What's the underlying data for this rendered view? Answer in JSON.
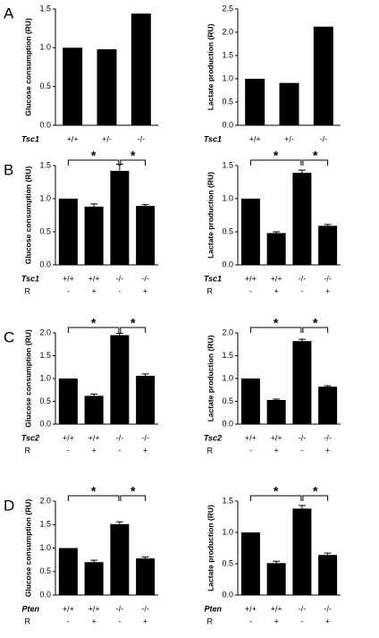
{
  "chart_data": [
    {
      "type": "bar",
      "panel": "A",
      "ylabel": "Glucose consumption (RU)",
      "gene": "Tsc1",
      "categories": [
        "+/+",
        "+/-",
        "-/-"
      ],
      "values": [
        1.0,
        0.98,
        1.44
      ],
      "color": "#000000",
      "ylim": [
        0,
        1.5
      ],
      "yticks": [
        {
          "value": 0,
          "label": "0.0"
        },
        {
          "value": 0.5,
          "label": "0.5"
        },
        {
          "value": 1,
          "label": "1.0"
        },
        {
          "value": 1.5,
          "label": "1.5"
        }
      ]
    },
    {
      "type": "bar",
      "ylabel": "Lactate production (RU)",
      "gene": "Tsc1",
      "categories": [
        "+/+",
        "+/-",
        "-/-"
      ],
      "values": [
        1.0,
        0.91,
        2.12
      ],
      "color": "#000000",
      "ylim": [
        0,
        2.5
      ],
      "yticks": [
        {
          "value": 0,
          "label": "0.0"
        },
        {
          "value": 0.5,
          "label": "0.5"
        },
        {
          "value": 1,
          "label": "1.0"
        },
        {
          "value": 1.5,
          "label": "1.5"
        },
        {
          "value": 2,
          "label": "2.0"
        },
        {
          "value": 2.5,
          "label": "2.5"
        }
      ]
    },
    {
      "type": "bar",
      "panel": "B",
      "ylabel": "Glucose consumption (RU)",
      "gene": "Tsc1",
      "categories": [
        "+/+",
        "+/+",
        "-/-",
        "-/-"
      ],
      "treatment_label": "R",
      "treatments": [
        "-",
        "+",
        "-",
        "+"
      ],
      "values": [
        1.0,
        0.88,
        1.42,
        0.89
      ],
      "errors": [
        0.0,
        0.04,
        0.1,
        0.02
      ],
      "significance": [
        "*",
        "*"
      ],
      "color": "#000000",
      "ylim": [
        0,
        1.5
      ],
      "yticks": [
        {
          "value": 0,
          "label": "0.0"
        },
        {
          "value": 0.5,
          "label": "0.5"
        },
        {
          "value": 1,
          "label": "1.0"
        },
        {
          "value": 1.5,
          "label": "1.5"
        }
      ]
    },
    {
      "type": "bar",
      "ylabel": "Lactate production (RU)",
      "gene": "Tsc1",
      "categories": [
        "+/+",
        "+/+",
        "-/-",
        "-/-"
      ],
      "treatment_label": "R",
      "treatments": [
        "-",
        "+",
        "-",
        "+"
      ],
      "values": [
        1.0,
        0.48,
        1.39,
        0.59
      ],
      "errors": [
        0.0,
        0.02,
        0.04,
        0.02
      ],
      "significance": [
        "*",
        "*"
      ],
      "color": "#000000",
      "ylim": [
        0,
        1.5
      ],
      "yticks": [
        {
          "value": 0,
          "label": "0.0"
        },
        {
          "value": 0.5,
          "label": "0.5"
        },
        {
          "value": 1,
          "label": "1.0"
        },
        {
          "value": 1.5,
          "label": "1.5"
        }
      ]
    },
    {
      "type": "bar",
      "panel": "C",
      "ylabel": "Glucose consumption (RU)",
      "gene": "Tsc2",
      "categories": [
        "+/+",
        "+/+",
        "-/-",
        "-/-"
      ],
      "treatment_label": "R",
      "treatments": [
        "-",
        "+",
        "-",
        "+"
      ],
      "values": [
        1.0,
        0.62,
        1.95,
        1.06
      ],
      "errors": [
        0.0,
        0.04,
        0.04,
        0.04
      ],
      "significance": [
        "*",
        "*"
      ],
      "color": "#000000",
      "ylim": [
        0,
        2
      ],
      "yticks": [
        {
          "value": 0,
          "label": "0.0"
        },
        {
          "value": 0.5,
          "label": "0.5"
        },
        {
          "value": 1,
          "label": "1.0"
        },
        {
          "value": 1.5,
          "label": "1.5"
        },
        {
          "value": 2,
          "label": "2.0"
        }
      ]
    },
    {
      "type": "bar",
      "ylabel": "Lactate production (RU)",
      "gene": "Tsc2",
      "categories": [
        "+/+",
        "+/+",
        "-/-",
        "-/-"
      ],
      "treatment_label": "R",
      "treatments": [
        "-",
        "+",
        "-",
        "+"
      ],
      "values": [
        1.0,
        0.53,
        1.82,
        0.82
      ],
      "errors": [
        0.0,
        0.02,
        0.04,
        0.02
      ],
      "significance": [
        "*",
        "*"
      ],
      "color": "#000000",
      "ylim": [
        0,
        2
      ],
      "yticks": [
        {
          "value": 0,
          "label": "0.0"
        },
        {
          "value": 0.5,
          "label": "0.5"
        },
        {
          "value": 1,
          "label": "1.0"
        },
        {
          "value": 1.5,
          "label": "1.5"
        },
        {
          "value": 2,
          "label": "2.0"
        }
      ]
    },
    {
      "type": "bar",
      "panel": "D",
      "ylabel": "Glucose consumption (RU)",
      "gene": "Pten",
      "categories": [
        "+/+",
        "+/+",
        "-/-",
        "-/-"
      ],
      "treatment_label": "R",
      "treatments": [
        "-",
        "+",
        "-",
        "+"
      ],
      "values": [
        1.0,
        0.7,
        1.51,
        0.78
      ],
      "errors": [
        0.0,
        0.04,
        0.05,
        0.03
      ],
      "significance": [
        "*",
        "*"
      ],
      "color": "#000000",
      "ylim": [
        0,
        2
      ],
      "yticks": [
        {
          "value": 0,
          "label": "0.0"
        },
        {
          "value": 0.5,
          "label": "0.5"
        },
        {
          "value": 1,
          "label": "1.0"
        },
        {
          "value": 1.5,
          "label": "1.5"
        },
        {
          "value": 2,
          "label": "2.0"
        }
      ]
    },
    {
      "type": "bar",
      "ylabel": "Lactate production (RU)",
      "gene": "Pten",
      "categories": [
        "+/+",
        "+/+",
        "-/-",
        "-/-"
      ],
      "treatment_label": "R",
      "treatments": [
        "-",
        "+",
        "-",
        "+"
      ],
      "values": [
        1.0,
        0.51,
        1.38,
        0.64
      ],
      "errors": [
        0.0,
        0.03,
        0.05,
        0.03
      ],
      "significance": [
        "*",
        "*"
      ],
      "color": "#000000",
      "ylim": [
        0,
        1.5
      ],
      "yticks": [
        {
          "value": 0,
          "label": "0.0"
        },
        {
          "value": 0.5,
          "label": "0.5"
        },
        {
          "value": 1,
          "label": "1.0"
        },
        {
          "value": 1.5,
          "label": "1.5"
        }
      ]
    }
  ]
}
